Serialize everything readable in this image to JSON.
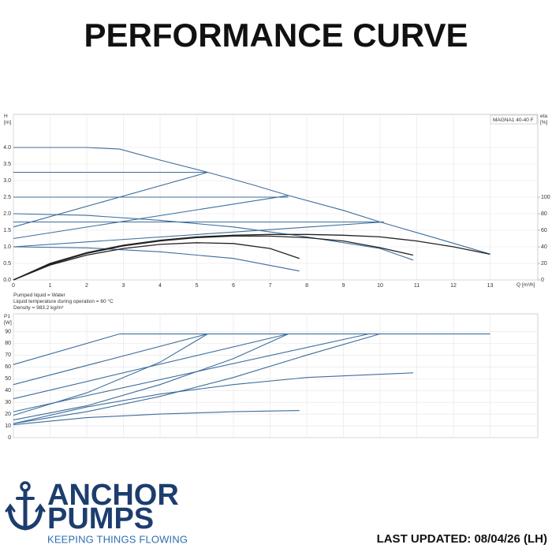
{
  "header": {
    "title": "PERFORMANCE CURVE"
  },
  "chart_data": [
    {
      "type": "line",
      "y_label": "H",
      "y_unit": "[m]",
      "y2_label": "eta",
      "y2_unit": "[%]",
      "x_label": "Q [m³/h]",
      "annotation": "MAGNA1 40-40 F",
      "xlim": [
        0,
        14.3
      ],
      "xticks": [
        0,
        1,
        2,
        3,
        4,
        5,
        6,
        7,
        8,
        9,
        10,
        11,
        12,
        13
      ],
      "ylim": [
        0,
        5.0
      ],
      "yticks": [
        {
          "value": 0,
          "label": "0.0"
        },
        0.5,
        {
          "value": 1,
          "label": "1.0"
        },
        1.5,
        {
          "value": 2,
          "label": "2.0"
        },
        2.5,
        {
          "value": 3,
          "label": "3.0"
        },
        3.5,
        {
          "value": 4,
          "label": "4.0"
        }
      ],
      "y2lim": [
        0,
        200
      ],
      "y2ticks": [
        0,
        20,
        40,
        60,
        80,
        100
      ],
      "grid": true,
      "series": [
        {
          "color": "#3d6d9c",
          "x": [
            0,
            2,
            2.9,
            4,
            5.3,
            6.5,
            7.5,
            9,
            10,
            11.5,
            13
          ],
          "values": [
            4.0,
            4.0,
            3.95,
            3.62,
            3.25,
            2.88,
            2.55,
            2.1,
            1.75,
            1.27,
            0.78
          ]
        },
        {
          "color": "#3d6d9c",
          "x": [
            0,
            5.3
          ],
          "values": [
            3.25,
            3.25
          ]
        },
        {
          "color": "#3d6d9c",
          "x": [
            0,
            7.5
          ],
          "values": [
            2.5,
            2.5
          ]
        },
        {
          "color": "#3d6d9c",
          "x": [
            0,
            10.1
          ],
          "values": [
            1.75,
            1.75
          ]
        },
        {
          "color": "#3d6d9c",
          "x": [
            0,
            5.3
          ],
          "values": [
            1.6,
            3.25
          ]
        },
        {
          "color": "#3d6d9c",
          "x": [
            0,
            7.5
          ],
          "values": [
            1.25,
            2.55
          ]
        },
        {
          "color": "#3d6d9c",
          "x": [
            0,
            10.1
          ],
          "values": [
            1.0,
            1.75
          ]
        },
        {
          "color": "#3d6d9c",
          "x": [
            0,
            2,
            4,
            6,
            8,
            10,
            10.9
          ],
          "values": [
            2.0,
            1.95,
            1.8,
            1.6,
            1.3,
            0.95,
            0.6
          ]
        },
        {
          "color": "#3d6d9c",
          "x": [
            0,
            2,
            4,
            6,
            7.8
          ],
          "values": [
            1.0,
            0.97,
            0.85,
            0.65,
            0.27
          ]
        },
        {
          "color": "#222222",
          "axis": "y2",
          "x": [
            0,
            1,
            2,
            3,
            4,
            5,
            6,
            7,
            7.8
          ],
          "values": [
            0,
            18,
            30,
            38,
            43,
            45,
            44,
            38,
            26
          ]
        },
        {
          "color": "#222222",
          "axis": "y2",
          "x": [
            0,
            1,
            2,
            3,
            4,
            5,
            6,
            7,
            8,
            9,
            10,
            10.9
          ],
          "values": [
            0,
            19,
            32,
            41,
            47,
            51,
            53,
            53,
            51,
            47,
            39,
            30
          ]
        },
        {
          "color": "#222222",
          "axis": "y2",
          "x": [
            0,
            1,
            2,
            3,
            4,
            5,
            6,
            7,
            8,
            9,
            10,
            11,
            12,
            13
          ],
          "values": [
            0,
            20,
            33,
            42,
            48,
            52,
            54,
            55,
            55,
            54,
            52,
            47,
            40,
            31
          ]
        }
      ]
    },
    {
      "type": "line",
      "y_label": "P1",
      "y_unit": "[W]",
      "xlim": [
        0,
        14.3
      ],
      "ylim": [
        0,
        105
      ],
      "yticks": [
        0,
        10,
        20,
        30,
        40,
        50,
        60,
        70,
        80,
        90
      ],
      "grid": true,
      "series": [
        {
          "color": "#3d6d9c",
          "x": [
            0,
            2.9,
            13
          ],
          "values": [
            62,
            88,
            88
          ]
        },
        {
          "color": "#3d6d9c",
          "x": [
            0,
            5.3
          ],
          "values": [
            45,
            88
          ]
        },
        {
          "color": "#3d6d9c",
          "x": [
            0,
            2,
            4,
            5.3
          ],
          "values": [
            19,
            38,
            64,
            88
          ]
        },
        {
          "color": "#3d6d9c",
          "x": [
            0,
            7.5
          ],
          "values": [
            33,
            88
          ]
        },
        {
          "color": "#3d6d9c",
          "x": [
            0,
            2,
            4,
            6,
            7.5
          ],
          "values": [
            15,
            27,
            45,
            67,
            88
          ]
        },
        {
          "color": "#3d6d9c",
          "x": [
            0,
            9.7
          ],
          "values": [
            22,
            88
          ]
        },
        {
          "color": "#3d6d9c",
          "x": [
            0,
            2,
            4,
            6,
            8,
            10
          ],
          "values": [
            12,
            22,
            35,
            51,
            70,
            88
          ]
        },
        {
          "color": "#3d6d9c",
          "x": [
            0,
            2,
            4,
            6,
            8,
            10.9
          ],
          "values": [
            12,
            26,
            37,
            45,
            51,
            55
          ]
        },
        {
          "color": "#3d6d9c",
          "x": [
            0,
            2,
            4,
            6,
            7.8
          ],
          "values": [
            11,
            17,
            20,
            22,
            23
          ]
        }
      ]
    }
  ],
  "notes": [
    "Pumped liquid = Water",
    "Liquid temperature during operation = 60 °C",
    "Density = 983.2 kg/m³"
  ],
  "logo": {
    "line1": "ANCHOR",
    "line2": "PUMPS",
    "tagline": "KEEPING THINGS FLOWING"
  },
  "footer": {
    "updated": "LAST UPDATED: 08/04/26 (LH)"
  }
}
